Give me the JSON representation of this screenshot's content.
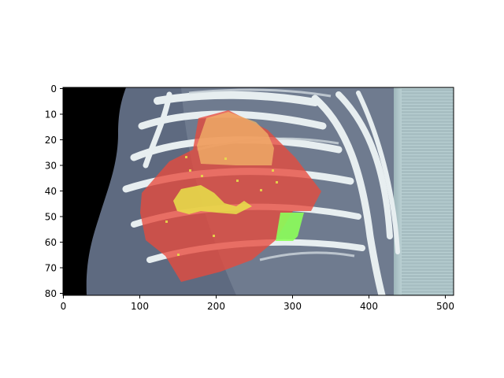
{
  "figure": {
    "x_ticks": [
      "0",
      "100",
      "200",
      "300",
      "400",
      "500"
    ],
    "y_ticks": [
      "0",
      "10",
      "20",
      "30",
      "40",
      "50",
      "60",
      "70",
      "80"
    ],
    "colors": {
      "background": "#000000",
      "scan_tint": "#a9c3c6",
      "bone": "#e9eef0",
      "overlay_red": "#e84a3c",
      "overlay_orange": "#f2b56a",
      "overlay_yellow": "#e8e24a",
      "overlay_green": "#8cff5a"
    }
  }
}
